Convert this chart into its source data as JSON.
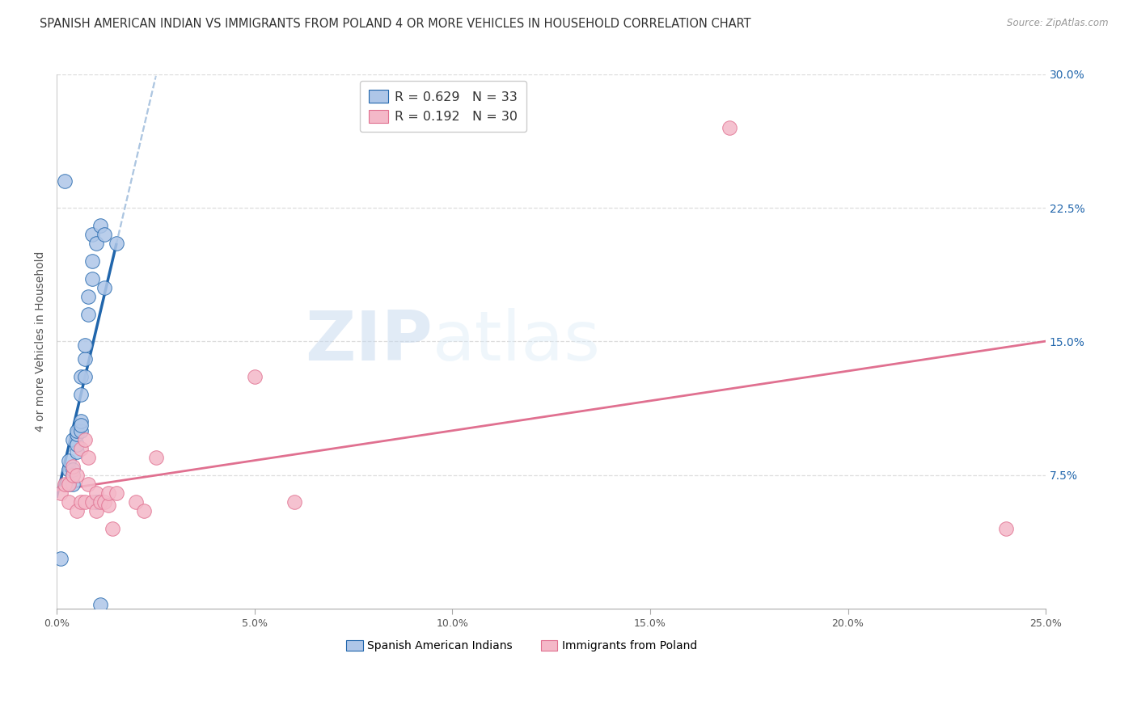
{
  "title": "SPANISH AMERICAN INDIAN VS IMMIGRANTS FROM POLAND 4 OR MORE VEHICLES IN HOUSEHOLD CORRELATION CHART",
  "source": "Source: ZipAtlas.com",
  "ylabel": "4 or more Vehicles in Household",
  "legend_label1": "Spanish American Indians",
  "legend_label2": "Immigrants from Poland",
  "R1": 0.629,
  "N1": 33,
  "R2": 0.192,
  "N2": 30,
  "xlim": [
    0.0,
    0.25
  ],
  "ylim": [
    0.0,
    0.3
  ],
  "color1": "#aec6e8",
  "color2": "#f4b8c8",
  "line1_color": "#2166ac",
  "line2_color": "#e07090",
  "diag_color": "#aac4e0",
  "background_color": "#ffffff",
  "grid_color": "#dddddd",
  "title_fontsize": 10.5,
  "axis_fontsize": 10,
  "tick_fontsize": 9,
  "right_ytick_vals": [
    0.075,
    0.15,
    0.225,
    0.3
  ],
  "right_yticklabels": [
    "7.5%",
    "15.0%",
    "22.5%",
    "30.0%"
  ],
  "xtick_vals": [
    0.0,
    0.05,
    0.1,
    0.15,
    0.2,
    0.25
  ],
  "xticklabels": [
    "0.0%",
    "5.0%",
    "10.0%",
    "15.0%",
    "20.0%",
    "25.0%"
  ],
  "scatter1_x": [
    0.001,
    0.002,
    0.003,
    0.003,
    0.003,
    0.004,
    0.004,
    0.004,
    0.004,
    0.005,
    0.005,
    0.005,
    0.005,
    0.006,
    0.006,
    0.006,
    0.006,
    0.006,
    0.007,
    0.007,
    0.007,
    0.008,
    0.008,
    0.009,
    0.009,
    0.009,
    0.01,
    0.01,
    0.011,
    0.011,
    0.012,
    0.012,
    0.015
  ],
  "scatter1_y": [
    0.028,
    0.24,
    0.07,
    0.078,
    0.083,
    0.07,
    0.075,
    0.078,
    0.095,
    0.088,
    0.092,
    0.098,
    0.1,
    0.1,
    0.105,
    0.103,
    0.13,
    0.12,
    0.13,
    0.14,
    0.148,
    0.165,
    0.175,
    0.185,
    0.195,
    0.21,
    0.06,
    0.205,
    0.002,
    0.215,
    0.18,
    0.21,
    0.205
  ],
  "scatter2_x": [
    0.001,
    0.002,
    0.003,
    0.003,
    0.004,
    0.004,
    0.005,
    0.005,
    0.006,
    0.006,
    0.007,
    0.007,
    0.008,
    0.008,
    0.009,
    0.01,
    0.01,
    0.011,
    0.012,
    0.013,
    0.013,
    0.014,
    0.015,
    0.02,
    0.022,
    0.025,
    0.05,
    0.06,
    0.17,
    0.24
  ],
  "scatter2_y": [
    0.065,
    0.07,
    0.07,
    0.06,
    0.075,
    0.08,
    0.055,
    0.075,
    0.06,
    0.09,
    0.06,
    0.095,
    0.07,
    0.085,
    0.06,
    0.055,
    0.065,
    0.06,
    0.06,
    0.058,
    0.065,
    0.045,
    0.065,
    0.06,
    0.055,
    0.085,
    0.13,
    0.06,
    0.27,
    0.045
  ]
}
